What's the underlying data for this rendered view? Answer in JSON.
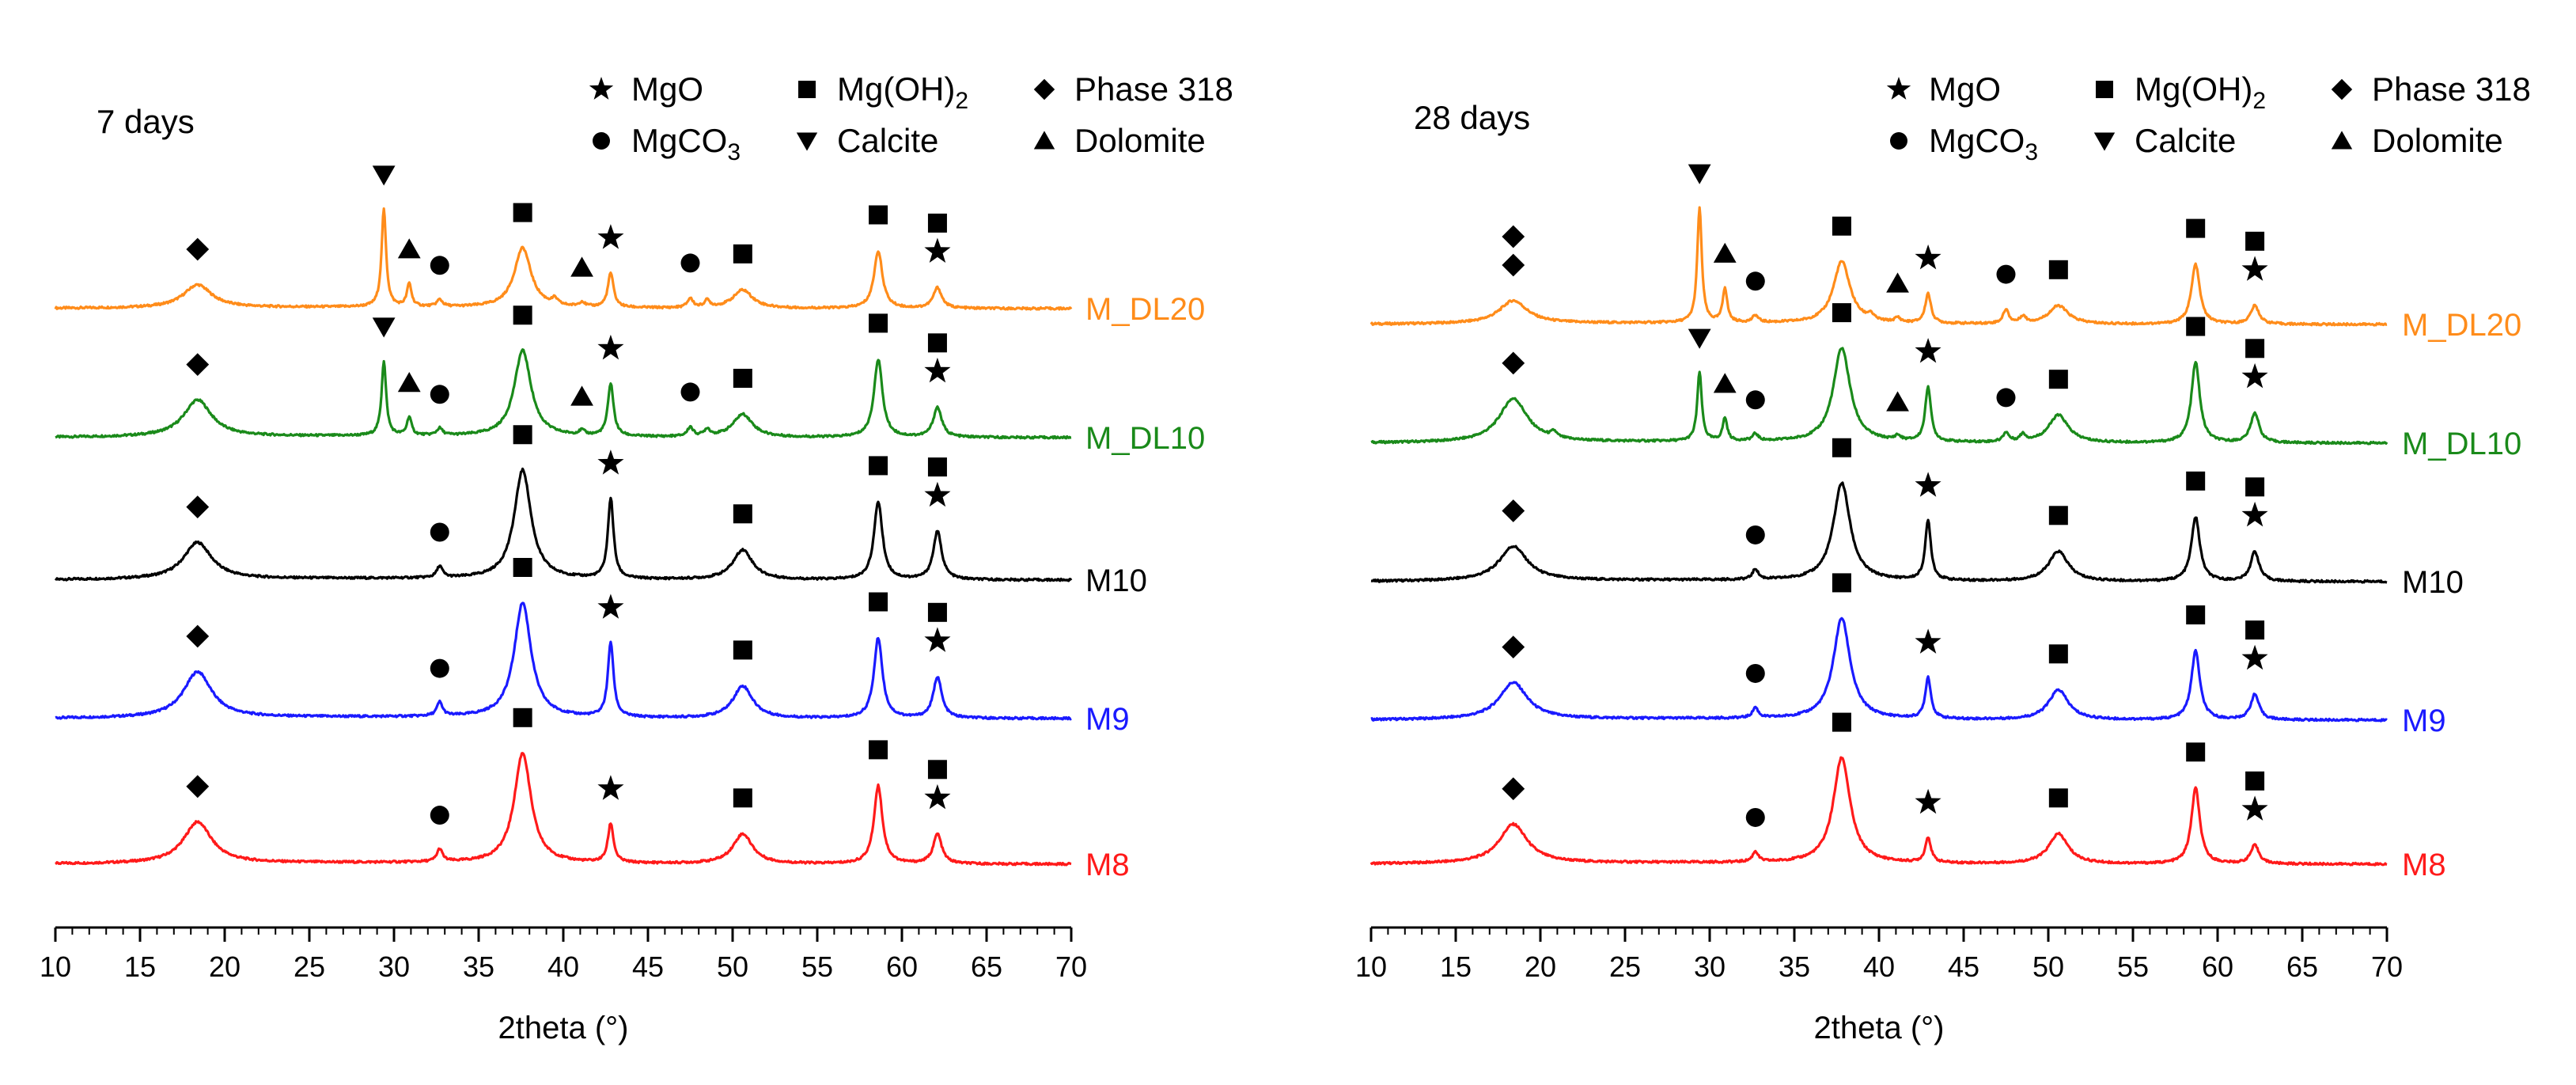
{
  "legend": [
    {
      "symbol": "star",
      "label": "MgO"
    },
    {
      "symbol": "square",
      "label": "Mg(OH)",
      "subscript": "2"
    },
    {
      "symbol": "diamond",
      "label": "Phase 318"
    },
    {
      "symbol": "circle",
      "label": "MgCO",
      "subscript": "3"
    },
    {
      "symbol": "triangle-down",
      "label": "Calcite"
    },
    {
      "symbol": "triangle-up",
      "label": "Dolomite"
    }
  ],
  "chart_data": [
    {
      "type": "line",
      "title": "7 days",
      "xlabel": "2theta (°)",
      "ylabel": "",
      "xlim": [
        10,
        70
      ],
      "xticks": [
        10,
        15,
        20,
        25,
        30,
        35,
        40,
        45,
        50,
        55,
        60,
        65,
        70
      ],
      "yticks": [],
      "series": [
        {
          "name": "M_DL20",
          "color": "#ff8c1a",
          "peaks": [
            [
              18.4,
              2.0,
              1.0
            ],
            [
              29.4,
              8.5,
              0.16
            ],
            [
              30.9,
              2.0,
              0.16
            ],
            [
              32.7,
              0.6,
              0.2
            ],
            [
              37.6,
              5.2,
              0.6
            ],
            [
              39.5,
              0.5,
              0.2
            ],
            [
              41.1,
              0.4,
              0.2
            ],
            [
              42.8,
              3.0,
              0.2
            ],
            [
              47.5,
              0.8,
              0.2
            ],
            [
              48.5,
              0.6,
              0.2
            ],
            [
              50.6,
              1.6,
              0.7
            ],
            [
              58.6,
              5.0,
              0.3
            ],
            [
              62.1,
              1.8,
              0.3
            ]
          ]
        },
        {
          "name": "M_DL10",
          "color": "#1a8a1a",
          "peaks": [
            [
              18.4,
              3.2,
              1.0
            ],
            [
              29.4,
              6.5,
              0.16
            ],
            [
              30.9,
              1.6,
              0.16
            ],
            [
              32.7,
              0.6,
              0.2
            ],
            [
              37.6,
              7.5,
              0.6
            ],
            [
              41.1,
              0.4,
              0.2
            ],
            [
              42.8,
              4.6,
              0.2
            ],
            [
              47.5,
              0.8,
              0.2
            ],
            [
              48.5,
              0.6,
              0.2
            ],
            [
              50.6,
              2.0,
              0.7
            ],
            [
              58.6,
              6.8,
              0.3
            ],
            [
              62.1,
              2.6,
              0.3
            ]
          ]
        },
        {
          "name": "M10",
          "color": "#000000",
          "peaks": [
            [
              18.4,
              3.2,
              1.0
            ],
            [
              32.7,
              1.0,
              0.2
            ],
            [
              37.6,
              9.5,
              0.6
            ],
            [
              42.8,
              7.0,
              0.2
            ],
            [
              50.6,
              2.6,
              0.7
            ],
            [
              58.6,
              6.8,
              0.3
            ],
            [
              62.1,
              4.2,
              0.3
            ]
          ]
        },
        {
          "name": "M9",
          "color": "#1a1aff",
          "peaks": [
            [
              18.4,
              4.0,
              1.0
            ],
            [
              32.7,
              1.2,
              0.2
            ],
            [
              37.6,
              10.0,
              0.6
            ],
            [
              42.8,
              6.5,
              0.2
            ],
            [
              50.6,
              2.8,
              0.7
            ],
            [
              58.6,
              7.0,
              0.3
            ],
            [
              62.1,
              3.6,
              0.3
            ]
          ]
        },
        {
          "name": "M8",
          "color": "#ff1a1a",
          "peaks": [
            [
              18.4,
              3.6,
              1.0
            ],
            [
              32.7,
              1.1,
              0.2
            ],
            [
              37.6,
              9.6,
              0.6
            ],
            [
              42.8,
              3.4,
              0.2
            ],
            [
              50.6,
              2.6,
              0.7
            ],
            [
              58.6,
              6.8,
              0.3
            ],
            [
              62.1,
              2.6,
              0.3
            ]
          ]
        }
      ]
    },
    {
      "type": "line",
      "title": "28 days",
      "xlabel": "2theta (°)",
      "ylabel": "",
      "xlim": [
        10,
        70
      ],
      "xticks": [
        10,
        15,
        20,
        25,
        30,
        35,
        40,
        45,
        50,
        55,
        60,
        65,
        70
      ],
      "yticks": [],
      "series": [
        {
          "name": "M_DL20",
          "color": "#ff8c1a",
          "peaks": [
            [
              18.4,
              2.0,
              1.0
            ],
            [
              29.4,
              10.0,
              0.16
            ],
            [
              30.9,
              3.0,
              0.16
            ],
            [
              32.7,
              0.6,
              0.2
            ],
            [
              37.8,
              5.4,
              0.6
            ],
            [
              39.5,
              0.5,
              0.2
            ],
            [
              41.1,
              0.4,
              0.2
            ],
            [
              42.9,
              2.6,
              0.2
            ],
            [
              47.5,
              1.2,
              0.2
            ],
            [
              48.5,
              0.6,
              0.2
            ],
            [
              50.6,
              1.6,
              0.7
            ],
            [
              58.7,
              5.2,
              0.3
            ],
            [
              62.2,
              1.6,
              0.3
            ]
          ]
        },
        {
          "name": "M_DL10",
          "color": "#1a8a1a",
          "peaks": [
            [
              18.4,
              3.8,
              1.0
            ],
            [
              20.8,
              0.5,
              0.2
            ],
            [
              29.4,
              6.0,
              0.16
            ],
            [
              30.9,
              2.0,
              0.16
            ],
            [
              32.7,
              0.6,
              0.2
            ],
            [
              37.8,
              8.2,
              0.6
            ],
            [
              41.1,
              0.4,
              0.2
            ],
            [
              42.9,
              4.8,
              0.2
            ],
            [
              47.5,
              0.8,
              0.2
            ],
            [
              48.5,
              0.6,
              0.2
            ],
            [
              50.6,
              2.4,
              0.7
            ],
            [
              58.7,
              7.0,
              0.3
            ],
            [
              62.2,
              2.6,
              0.3
            ]
          ]
        },
        {
          "name": "M10",
          "color": "#000000",
          "peaks": [
            [
              18.4,
              3.0,
              1.0
            ],
            [
              32.7,
              0.9,
              0.2
            ],
            [
              37.8,
              8.5,
              0.6
            ],
            [
              42.9,
              5.2,
              0.2
            ],
            [
              50.6,
              2.6,
              0.7
            ],
            [
              58.7,
              5.6,
              0.3
            ],
            [
              62.2,
              2.6,
              0.3
            ]
          ]
        },
        {
          "name": "M9",
          "color": "#1a1aff",
          "peaks": [
            [
              18.4,
              3.2,
              1.0
            ],
            [
              32.7,
              0.9,
              0.2
            ],
            [
              37.8,
              8.8,
              0.6
            ],
            [
              42.9,
              3.6,
              0.2
            ],
            [
              50.6,
              2.6,
              0.7
            ],
            [
              58.7,
              6.0,
              0.3
            ],
            [
              62.2,
              2.2,
              0.3
            ]
          ]
        },
        {
          "name": "M8",
          "color": "#ff1a1a",
          "peaks": [
            [
              18.4,
              3.4,
              1.0
            ],
            [
              32.7,
              0.9,
              0.2
            ],
            [
              37.8,
              9.2,
              0.6
            ],
            [
              42.9,
              2.2,
              0.2
            ],
            [
              50.6,
              2.6,
              0.7
            ],
            [
              58.7,
              6.6,
              0.3
            ],
            [
              62.2,
              1.6,
              0.3
            ]
          ]
        }
      ]
    }
  ],
  "phase_markers": [
    {
      "M_DL20": [
        [
          "diamond",
          18.4
        ],
        [
          "triangle-down",
          29.4
        ],
        [
          "triangle-up",
          30.9
        ],
        [
          "circle",
          32.7
        ],
        [
          "square",
          37.6
        ],
        [
          "triangle-up",
          41.1
        ],
        [
          "star",
          42.8
        ],
        [
          "circle",
          47.5
        ],
        [
          "square",
          50.6
        ],
        [
          "square",
          58.6
        ],
        [
          "square",
          62.1,
          2
        ],
        [
          "star",
          62.1
        ]
      ],
      "M_DL10": [
        [
          "diamond",
          18.4
        ],
        [
          "triangle-down",
          29.4
        ],
        [
          "triangle-up",
          30.9
        ],
        [
          "circle",
          32.7
        ],
        [
          "square",
          37.6
        ],
        [
          "triangle-up",
          41.1
        ],
        [
          "star",
          42.8
        ],
        [
          "circle",
          47.5
        ],
        [
          "square",
          50.6
        ],
        [
          "square",
          58.6
        ],
        [
          "square",
          62.1,
          2
        ],
        [
          "star",
          62.1
        ]
      ],
      "M10": [
        [
          "diamond",
          18.4
        ],
        [
          "circle",
          32.7
        ],
        [
          "square",
          37.6
        ],
        [
          "star",
          42.8
        ],
        [
          "square",
          50.6
        ],
        [
          "square",
          58.6
        ],
        [
          "square",
          62.1,
          2
        ],
        [
          "star",
          62.1
        ]
      ],
      "M9": [
        [
          "diamond",
          18.4
        ],
        [
          "circle",
          32.7
        ],
        [
          "square",
          37.6
        ],
        [
          "star",
          42.8
        ],
        [
          "square",
          50.6
        ],
        [
          "square",
          58.6
        ],
        [
          "square",
          62.1,
          2
        ],
        [
          "star",
          62.1
        ]
      ],
      "M8": [
        [
          "diamond",
          18.4
        ],
        [
          "circle",
          32.7
        ],
        [
          "square",
          37.6
        ],
        [
          "star",
          42.8
        ],
        [
          "square",
          50.6
        ],
        [
          "square",
          58.6
        ],
        [
          "square",
          62.1,
          2
        ],
        [
          "star",
          62.1
        ]
      ]
    },
    {
      "M_DL20": [
        [
          "diamond",
          18.4,
          2
        ],
        [
          "diamond",
          18.4
        ],
        [
          "triangle-down",
          29.4
        ],
        [
          "triangle-up",
          30.9
        ],
        [
          "circle",
          32.7
        ],
        [
          "square",
          37.8
        ],
        [
          "triangle-up",
          41.1
        ],
        [
          "star",
          42.9
        ],
        [
          "circle",
          47.5
        ],
        [
          "square",
          50.6
        ],
        [
          "square",
          58.7
        ],
        [
          "square",
          62.2,
          2
        ],
        [
          "star",
          62.2
        ]
      ],
      "M_DL10": [
        [
          "diamond",
          18.4
        ],
        [
          "triangle-down",
          29.4
        ],
        [
          "triangle-up",
          30.9
        ],
        [
          "circle",
          32.7
        ],
        [
          "square",
          37.8
        ],
        [
          "triangle-up",
          41.1
        ],
        [
          "star",
          42.9
        ],
        [
          "circle",
          47.5
        ],
        [
          "square",
          50.6
        ],
        [
          "square",
          58.7
        ],
        [
          "square",
          62.2,
          2
        ],
        [
          "star",
          62.2
        ]
      ],
      "M10": [
        [
          "diamond",
          18.4
        ],
        [
          "circle",
          32.7
        ],
        [
          "square",
          37.8
        ],
        [
          "star",
          42.9
        ],
        [
          "square",
          50.6
        ],
        [
          "square",
          58.7
        ],
        [
          "square",
          62.2,
          2
        ],
        [
          "star",
          62.2
        ]
      ],
      "M9": [
        [
          "diamond",
          18.4
        ],
        [
          "circle",
          32.7
        ],
        [
          "square",
          37.8
        ],
        [
          "star",
          42.9
        ],
        [
          "square",
          50.6
        ],
        [
          "square",
          58.7
        ],
        [
          "square",
          62.2,
          2
        ],
        [
          "star",
          62.2
        ]
      ],
      "M8": [
        [
          "diamond",
          18.4
        ],
        [
          "circle",
          32.7
        ],
        [
          "square",
          37.8
        ],
        [
          "star",
          42.9
        ],
        [
          "square",
          50.6
        ],
        [
          "square",
          58.7
        ],
        [
          "square",
          62.2,
          2
        ],
        [
          "star",
          62.2
        ]
      ]
    }
  ]
}
